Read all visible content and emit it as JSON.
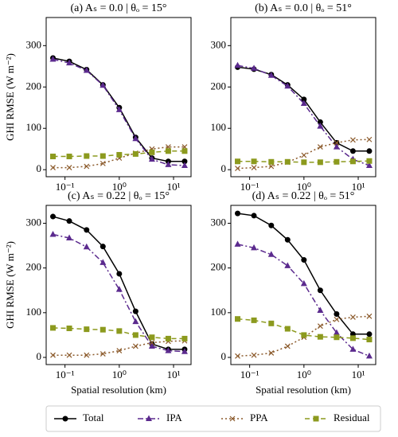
{
  "chart_data": [
    {
      "type": "line",
      "title": "(a) Aₛ = 0.0 | θₒ = 15°",
      "ylabel": "GHI RMSE (W m⁻²)",
      "x": [
        0.06,
        0.12,
        0.25,
        0.5,
        1,
        2,
        4,
        8,
        16
      ],
      "log_x": true,
      "xlim": [
        0.045,
        21
      ],
      "xticks": [
        {
          "value": 0.1,
          "label": "10⁻¹"
        },
        {
          "value": 1,
          "label": "10⁰"
        },
        {
          "value": 10,
          "label": "10¹"
        }
      ],
      "ylim": [
        -17,
        368
      ],
      "yticks": [
        0,
        100,
        200,
        300
      ],
      "series": [
        {
          "name": "Total",
          "color": "#000000",
          "values": [
            270,
            262,
            242,
            205,
            150,
            78,
            28,
            20,
            20
          ]
        },
        {
          "name": "IPA",
          "color": "#5b2a8e",
          "values": [
            267,
            258,
            240,
            204,
            145,
            75,
            25,
            12,
            10
          ]
        },
        {
          "name": "PPA",
          "color": "#8b5a2b",
          "values": [
            5,
            5,
            8,
            15,
            28,
            40,
            50,
            55,
            55
          ]
        },
        {
          "name": "Residual",
          "color": "#8c9a1e",
          "values": [
            32,
            32,
            33,
            33,
            36,
            38,
            42,
            45,
            45
          ]
        }
      ]
    },
    {
      "type": "line",
      "title": "(b) Aₛ = 0.0 | θₒ = 51°",
      "x": [
        0.06,
        0.12,
        0.25,
        0.5,
        1,
        2,
        4,
        8,
        16
      ],
      "log_x": true,
      "xlim": [
        0.045,
        21
      ],
      "xticks": [
        {
          "value": 0.1,
          "label": "10⁻¹"
        },
        {
          "value": 1,
          "label": "10⁰"
        },
        {
          "value": 10,
          "label": "10¹"
        }
      ],
      "ylim": [
        -17,
        368
      ],
      "yticks": [
        0,
        100,
        200,
        300
      ],
      "series": [
        {
          "name": "Total",
          "color": "#000000",
          "values": [
            248,
            243,
            230,
            205,
            170,
            115,
            65,
            45,
            45
          ]
        },
        {
          "name": "IPA",
          "color": "#5b2a8e",
          "values": [
            252,
            245,
            228,
            202,
            160,
            105,
            55,
            25,
            10
          ]
        },
        {
          "name": "PPA",
          "color": "#8b5a2b",
          "values": [
            3,
            5,
            8,
            18,
            35,
            55,
            65,
            72,
            73
          ]
        },
        {
          "name": "Residual",
          "color": "#8c9a1e",
          "values": [
            20,
            20,
            19,
            19,
            18,
            18,
            19,
            20,
            21
          ]
        }
      ]
    },
    {
      "type": "line",
      "title": "(c) Aₛ = 0.22 | θₒ = 15°",
      "ylabel": "GHI RMSE (W m⁻²)",
      "xlabel": "Spatial resolution (km)",
      "x": [
        0.06,
        0.12,
        0.25,
        0.5,
        1,
        2,
        4,
        8,
        16
      ],
      "log_x": true,
      "xlim": [
        0.045,
        21
      ],
      "xticks": [
        {
          "value": 0.1,
          "label": "10⁻¹"
        },
        {
          "value": 1,
          "label": "10⁰"
        },
        {
          "value": 10,
          "label": "10¹"
        }
      ],
      "ylim": [
        -16,
        340
      ],
      "yticks": [
        0,
        100,
        200,
        300
      ],
      "series": [
        {
          "name": "Total",
          "color": "#000000",
          "values": [
            315,
            305,
            285,
            248,
            187,
            103,
            30,
            18,
            18
          ]
        },
        {
          "name": "IPA",
          "color": "#5b2a8e",
          "values": [
            275,
            267,
            247,
            212,
            152,
            80,
            25,
            15,
            13
          ]
        },
        {
          "name": "PPA",
          "color": "#8b5a2b",
          "values": [
            5,
            5,
            5,
            8,
            15,
            25,
            33,
            36,
            37
          ]
        },
        {
          "name": "Residual",
          "color": "#8c9a1e",
          "values": [
            66,
            65,
            63,
            62,
            59,
            50,
            45,
            42,
            42
          ]
        }
      ]
    },
    {
      "type": "line",
      "title": "(d) Aₛ = 0.22 | θₒ = 51°",
      "xlabel": "Spatial resolution (km)",
      "x": [
        0.06,
        0.12,
        0.25,
        0.5,
        1,
        2,
        4,
        8,
        16
      ],
      "log_x": true,
      "xlim": [
        0.045,
        21
      ],
      "xticks": [
        {
          "value": 0.1,
          "label": "10⁻¹"
        },
        {
          "value": 1,
          "label": "10⁰"
        },
        {
          "value": 10,
          "label": "10¹"
        }
      ],
      "ylim": [
        -16,
        340
      ],
      "yticks": [
        0,
        100,
        200,
        300
      ],
      "series": [
        {
          "name": "Total",
          "color": "#000000",
          "values": [
            322,
            317,
            295,
            263,
            218,
            150,
            97,
            52,
            52
          ]
        },
        {
          "name": "IPA",
          "color": "#5b2a8e",
          "values": [
            253,
            245,
            230,
            205,
            165,
            105,
            55,
            18,
            3
          ]
        },
        {
          "name": "PPA",
          "color": "#8b5a2b",
          "values": [
            3,
            5,
            10,
            25,
            45,
            70,
            85,
            90,
            92
          ]
        },
        {
          "name": "Residual",
          "color": "#8c9a1e",
          "values": [
            86,
            83,
            76,
            64,
            50,
            46,
            45,
            43,
            40
          ]
        }
      ]
    }
  ]
}
